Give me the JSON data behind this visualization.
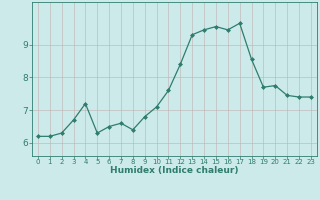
{
  "x": [
    0,
    1,
    2,
    3,
    4,
    5,
    6,
    7,
    8,
    9,
    10,
    11,
    12,
    13,
    14,
    15,
    16,
    17,
    18,
    19,
    20,
    21,
    22,
    23
  ],
  "y": [
    6.2,
    6.2,
    6.3,
    6.7,
    7.2,
    6.3,
    6.5,
    6.6,
    6.4,
    6.8,
    7.1,
    7.6,
    8.4,
    9.3,
    9.45,
    9.55,
    9.45,
    9.65,
    8.55,
    7.7,
    7.75,
    7.45,
    7.4,
    7.4
  ],
  "line_color": "#2e7d6e",
  "marker": "D",
  "marker_size": 2.0,
  "bg_color": "#cdeaea",
  "grid_color": "#c0b0b0",
  "xlabel": "Humidex (Indice chaleur)",
  "ylim": [
    5.6,
    10.3
  ],
  "xlim": [
    -0.5,
    23.5
  ],
  "yticks": [
    6,
    7,
    8,
    9
  ],
  "xticks": [
    0,
    1,
    2,
    3,
    4,
    5,
    6,
    7,
    8,
    9,
    10,
    11,
    12,
    13,
    14,
    15,
    16,
    17,
    18,
    19,
    20,
    21,
    22,
    23
  ],
  "tick_color": "#2e7d6e",
  "xlabel_fontsize": 6.5,
  "xtick_fontsize": 5.0,
  "ytick_fontsize": 6.5,
  "linewidth": 0.9
}
